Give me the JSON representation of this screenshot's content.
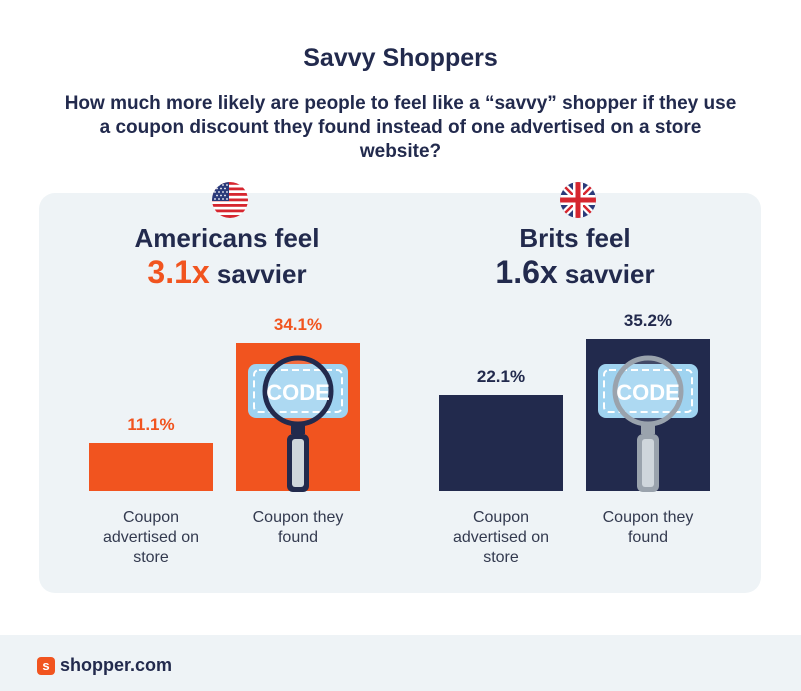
{
  "title": "Savvy Shoppers",
  "subtitle": "How much more likely are people to feel like a “savvy” shopper if they use a coupon discount they found instead of one advertised on a store website?",
  "code_label": "CODE",
  "footer": {
    "brand": "shopper.com",
    "brand_icon": "s"
  },
  "colors": {
    "orange": "#f1541f",
    "navy": "#222a4d",
    "panel": "#eef3f6"
  },
  "chart_data": [
    {
      "type": "bar",
      "country": "US",
      "flag": "us-flag-icon",
      "headline_prefix": "Americans feel",
      "multiplier": "3.1x",
      "headline_suffix": "savvier",
      "accent": "#f1541f",
      "categories": [
        "Coupon advertised on store",
        "Coupon they found"
      ],
      "values": [
        11.1,
        34.1
      ],
      "value_labels": [
        "11.1%",
        "34.1%"
      ],
      "ylim": [
        0,
        40
      ]
    },
    {
      "type": "bar",
      "country": "UK",
      "flag": "uk-flag-icon",
      "headline_prefix": "Brits feel",
      "multiplier": "1.6x",
      "headline_suffix": "savvier",
      "accent": "#222a4d",
      "categories": [
        "Coupon advertised on store",
        "Coupon they found"
      ],
      "values": [
        22.1,
        35.2
      ],
      "value_labels": [
        "22.1%",
        "35.2%"
      ],
      "ylim": [
        0,
        40
      ]
    }
  ]
}
